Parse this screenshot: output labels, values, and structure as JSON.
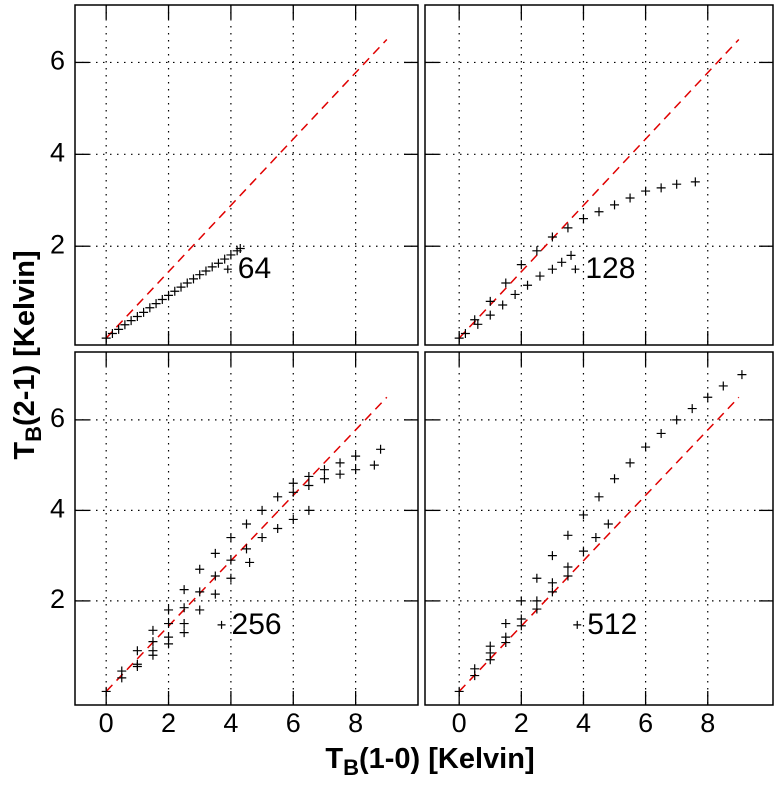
{
  "axis_labels": {
    "x": {
      "text": "T",
      "sub": "B",
      "rest": "(1-0) [Kelvin]"
    },
    "y": {
      "text": "T",
      "sub": "B",
      "rest": "(2-1) [Kelvin]"
    }
  },
  "chart_data": [
    {
      "type": "scatter",
      "color": "#000000",
      "grid": true,
      "xlim": [
        -1,
        10
      ],
      "ylim": [
        -0.15,
        7.25
      ],
      "xticks": [
        0,
        2,
        4,
        6,
        8
      ],
      "yticks": [
        2,
        4,
        6
      ],
      "x": [
        0,
        0.2,
        0.4,
        0.6,
        0.8,
        1,
        1.2,
        1.4,
        1.6,
        1.8,
        2,
        2.2,
        2.4,
        2.6,
        2.8,
        3,
        3.2,
        3.4,
        3.6,
        3.8,
        4,
        4.2,
        4.3
      ],
      "values": [
        0,
        0.1,
        0.19,
        0.29,
        0.38,
        0.47,
        0.56,
        0.66,
        0.75,
        0.84,
        0.93,
        1.02,
        1.11,
        1.2,
        1.29,
        1.38,
        1.46,
        1.55,
        1.63,
        1.72,
        1.81,
        1.9,
        1.95
      ],
      "ref_line": {
        "x": [
          0,
          9
        ],
        "y": [
          0,
          6.5
        ],
        "color": "#e00000",
        "style": "dashed"
      },
      "annotations": [
        {
          "text": "64",
          "x": 3.9,
          "y": 1.5
        }
      ]
    },
    {
      "type": "scatter",
      "color": "#000000",
      "grid": true,
      "xlim": [
        -1.1,
        10.1
      ],
      "ylim": [
        -0.15,
        7.25
      ],
      "xticks": [
        0,
        2,
        4,
        6,
        8
      ],
      "yticks": [
        2,
        4,
        6
      ],
      "x": [
        0,
        0.5,
        1,
        1.5,
        2,
        2.5,
        3,
        3.5,
        4,
        4.5,
        5,
        5.5,
        6,
        6.5,
        7,
        7.6,
        0.2,
        0.6,
        1,
        1.4,
        1.8,
        2.2,
        2.6,
        3,
        3.3,
        3.6
      ],
      "values": [
        0,
        0.4,
        0.8,
        1.2,
        1.6,
        1.9,
        2.2,
        2.4,
        2.6,
        2.75,
        2.9,
        3.05,
        3.2,
        3.27,
        3.35,
        3.4,
        0.1,
        0.3,
        0.5,
        0.72,
        0.95,
        1.15,
        1.35,
        1.5,
        1.65,
        1.8
      ],
      "ref_line": {
        "x": [
          0,
          9
        ],
        "y": [
          0,
          6.5
        ],
        "color": "#e00000",
        "style": "dashed"
      },
      "annotations": [
        {
          "text": "128",
          "x": 3.74,
          "y": 1.5
        }
      ]
    },
    {
      "type": "scatter",
      "color": "#000000",
      "grid": true,
      "xlim": [
        -1,
        10
      ],
      "ylim": [
        -0.3,
        7.5
      ],
      "xticks": [
        0,
        2,
        4,
        6,
        8
      ],
      "yticks": [
        2,
        4,
        6
      ],
      "x": [
        0,
        0.5,
        1,
        1.5,
        2,
        2.5,
        3,
        3.5,
        4,
        4.5,
        5,
        5.5,
        6,
        6.5,
        7,
        7.5,
        8,
        8.8,
        6,
        6.5,
        7,
        7.5,
        8,
        8.6,
        1.5,
        2,
        2.5,
        3,
        3.5,
        4,
        4.5,
        5,
        5.5,
        6,
        6.5,
        0.5,
        1,
        1.5,
        2,
        2.5,
        3,
        3.5,
        4,
        4.6,
        1,
        1.5,
        2,
        2.5
      ],
      "values": [
        0,
        0.45,
        0.9,
        1.35,
        1.8,
        2.25,
        2.7,
        3.05,
        3.4,
        3.7,
        4.0,
        4.3,
        4.6,
        4.75,
        4.9,
        5.05,
        5.2,
        5.35,
        4.4,
        4.55,
        4.7,
        4.8,
        4.9,
        5.0,
        1.1,
        1.5,
        1.85,
        2.2,
        2.55,
        2.9,
        3.15,
        3.4,
        3.6,
        3.8,
        4.0,
        0.3,
        0.6,
        0.9,
        1.2,
        1.5,
        1.8,
        2.15,
        2.5,
        2.85,
        0.55,
        0.8,
        1.05,
        1.3
      ],
      "ref_line": {
        "x": [
          0,
          9
        ],
        "y": [
          0,
          6.5
        ],
        "color": "#e00000",
        "style": "dashed"
      },
      "annotations": [
        {
          "text": "256",
          "x": 3.7,
          "y": 1.47
        }
      ]
    },
    {
      "type": "scatter",
      "color": "#000000",
      "grid": true,
      "xlim": [
        -1.1,
        10.1
      ],
      "ylim": [
        -0.3,
        7.5
      ],
      "xticks": [
        0,
        2,
        4,
        6,
        8
      ],
      "yticks": [
        2,
        4,
        6
      ],
      "x": [
        0,
        0.5,
        1,
        1.5,
        2,
        2.5,
        3,
        3.5,
        4,
        4.5,
        5,
        5.5,
        6,
        6.5,
        7,
        7.5,
        8,
        8.5,
        9.1,
        1,
        1.5,
        2,
        2.5,
        3,
        3.5,
        4,
        4.4,
        4.8,
        0.5,
        1,
        1.5,
        2,
        2.5,
        3,
        3.5
      ],
      "values": [
        0,
        0.5,
        1.0,
        1.5,
        2.0,
        2.5,
        3.0,
        3.45,
        3.9,
        4.3,
        4.7,
        5.05,
        5.4,
        5.7,
        6.0,
        6.25,
        6.5,
        6.75,
        7.0,
        0.85,
        1.2,
        1.6,
        2.0,
        2.4,
        2.75,
        3.1,
        3.4,
        3.7,
        0.35,
        0.7,
        1.08,
        1.45,
        1.82,
        2.2,
        2.55
      ],
      "ref_line": {
        "x": [
          0,
          9
        ],
        "y": [
          0,
          6.5
        ],
        "color": "#e00000",
        "style": "dashed"
      },
      "annotations": [
        {
          "text": "512",
          "x": 3.8,
          "y": 1.47
        }
      ]
    }
  ]
}
